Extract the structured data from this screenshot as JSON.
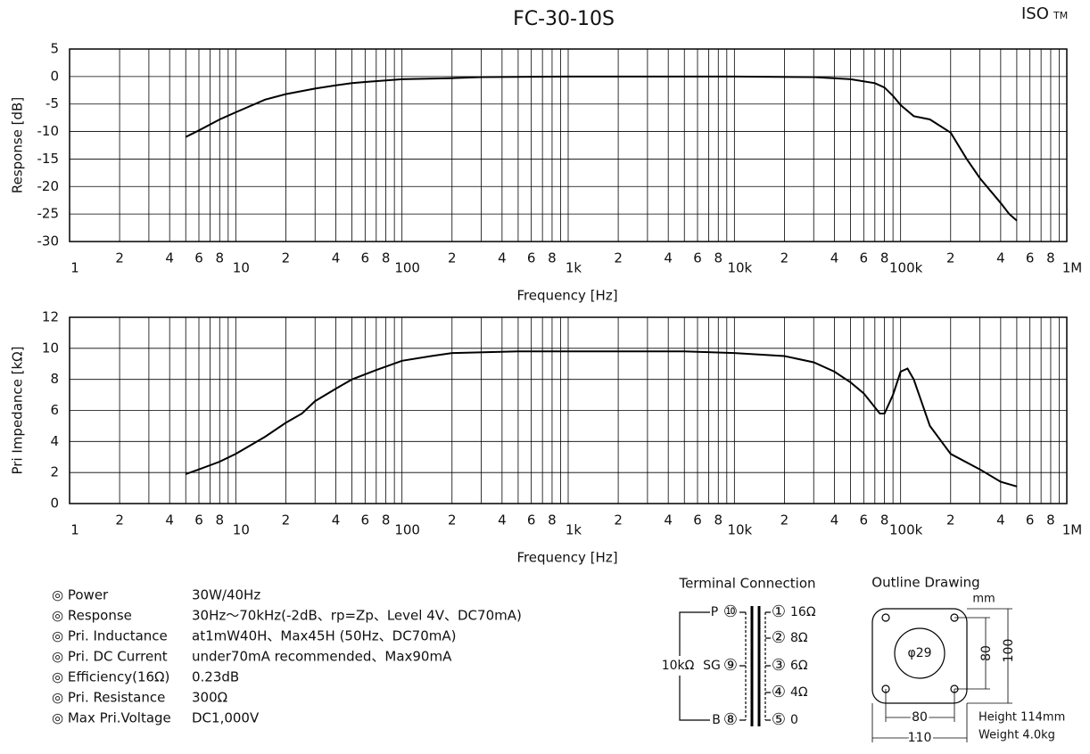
{
  "header": {
    "title": "FC-30-10S",
    "brand": "ISO",
    "trademark": "TM"
  },
  "chart_data": [
    {
      "type": "line",
      "xscale": "log",
      "grid": true,
      "ylabel": "Response [dB]",
      "xlabel": "Frequency [Hz]",
      "color": "#000000",
      "xlim": [
        1,
        1000000
      ],
      "ylim": [
        -30,
        5
      ],
      "yticks": [
        5,
        0,
        -5,
        -10,
        -15,
        -20,
        -25,
        -30
      ],
      "xticks": [
        1,
        2,
        4,
        6,
        8,
        10,
        {
          "value": 20,
          "label": "2"
        },
        {
          "value": 40,
          "label": "4"
        },
        {
          "value": 60,
          "label": "6"
        },
        {
          "value": 80,
          "label": "8"
        },
        100,
        {
          "value": 200,
          "label": "2"
        },
        {
          "value": 400,
          "label": "4"
        },
        {
          "value": 600,
          "label": "6"
        },
        {
          "value": 800,
          "label": "8"
        },
        {
          "value": 1000,
          "label": "1k"
        },
        {
          "value": 2000,
          "label": "2"
        },
        {
          "value": 4000,
          "label": "4"
        },
        {
          "value": 6000,
          "label": "6"
        },
        {
          "value": 8000,
          "label": "8"
        },
        {
          "value": 10000,
          "label": "10k"
        },
        {
          "value": 20000,
          "label": "2"
        },
        {
          "value": 40000,
          "label": "4"
        },
        {
          "value": 60000,
          "label": "6"
        },
        {
          "value": 80000,
          "label": "8"
        },
        {
          "value": 100000,
          "label": "100k"
        },
        {
          "value": 200000,
          "label": "2"
        },
        {
          "value": 400000,
          "label": "4"
        },
        {
          "value": 600000,
          "label": "6"
        },
        {
          "value": 800000,
          "label": "8"
        },
        {
          "value": 1000000,
          "label": "1M"
        }
      ],
      "x_minor_ticks": [
        3,
        5,
        7,
        9,
        30,
        50,
        70,
        90,
        300,
        500,
        700,
        900,
        3000,
        5000,
        7000,
        9000,
        30000,
        50000,
        70000,
        90000,
        300000,
        500000,
        700000,
        900000
      ],
      "x": [
        5,
        6,
        8,
        10,
        15,
        20,
        30,
        40,
        50,
        60,
        80,
        100,
        200,
        300,
        1000,
        10000,
        30000,
        50000,
        70000,
        80000,
        90000,
        100000,
        120000,
        150000,
        200000,
        250000,
        300000,
        400000,
        450000,
        500000
      ],
      "values": [
        -11,
        -9.8,
        -7.8,
        -6.5,
        -4.2,
        -3.2,
        -2.2,
        -1.6,
        -1.2,
        -1.0,
        -0.7,
        -0.5,
        -0.3,
        -0.1,
        0,
        0,
        -0.1,
        -0.5,
        -1.2,
        -2.0,
        -3.5,
        -5.2,
        -7.2,
        -7.8,
        -10.2,
        -15,
        -18.5,
        -23,
        -25,
        -26.2
      ]
    },
    {
      "type": "line",
      "xscale": "log",
      "grid": true,
      "ylabel": "Pri Impedance [kΩ]",
      "xlabel": "Frequency [Hz]",
      "color": "#000000",
      "xlim": [
        1,
        1000000
      ],
      "ylim": [
        0,
        12
      ],
      "yticks": [
        12,
        10,
        8,
        6,
        4,
        2,
        0
      ],
      "xticks": [
        1,
        2,
        4,
        6,
        8,
        10,
        {
          "value": 20,
          "label": "2"
        },
        {
          "value": 40,
          "label": "4"
        },
        {
          "value": 60,
          "label": "6"
        },
        {
          "value": 80,
          "label": "8"
        },
        100,
        {
          "value": 200,
          "label": "2"
        },
        {
          "value": 400,
          "label": "4"
        },
        {
          "value": 600,
          "label": "6"
        },
        {
          "value": 800,
          "label": "8"
        },
        {
          "value": 1000,
          "label": "1k"
        },
        {
          "value": 2000,
          "label": "2"
        },
        {
          "value": 4000,
          "label": "4"
        },
        {
          "value": 6000,
          "label": "6"
        },
        {
          "value": 8000,
          "label": "8"
        },
        {
          "value": 10000,
          "label": "10k"
        },
        {
          "value": 20000,
          "label": "2"
        },
        {
          "value": 40000,
          "label": "4"
        },
        {
          "value": 60000,
          "label": "6"
        },
        {
          "value": 80000,
          "label": "8"
        },
        {
          "value": 100000,
          "label": "100k"
        },
        {
          "value": 200000,
          "label": "2"
        },
        {
          "value": 400000,
          "label": "4"
        },
        {
          "value": 600000,
          "label": "6"
        },
        {
          "value": 800000,
          "label": "8"
        },
        {
          "value": 1000000,
          "label": "1M"
        }
      ],
      "x_minor_ticks": [
        3,
        5,
        7,
        9,
        30,
        50,
        70,
        90,
        300,
        500,
        700,
        900,
        3000,
        5000,
        7000,
        9000,
        30000,
        50000,
        70000,
        90000,
        300000,
        500000,
        700000,
        900000
      ],
      "x": [
        5,
        6,
        8,
        10,
        15,
        20,
        25,
        30,
        40,
        50,
        70,
        100,
        150,
        200,
        500,
        1000,
        5000,
        10000,
        20000,
        30000,
        40000,
        50000,
        60000,
        70000,
        75000,
        80000,
        90000,
        100000,
        110000,
        120000,
        150000,
        200000,
        300000,
        400000,
        500000
      ],
      "values": [
        1.9,
        2.2,
        2.7,
        3.2,
        4.3,
        5.2,
        5.8,
        6.6,
        7.4,
        8.0,
        8.6,
        9.2,
        9.5,
        9.7,
        9.8,
        9.8,
        9.8,
        9.7,
        9.5,
        9.1,
        8.5,
        7.8,
        7.1,
        6.2,
        5.8,
        5.8,
        7.0,
        8.5,
        8.7,
        8.0,
        5.0,
        3.2,
        2.2,
        1.4,
        1.1
      ]
    }
  ],
  "specs": [
    [
      "◎ Power",
      "30W/40Hz"
    ],
    [
      "◎ Response",
      "30Hz～70kHz(-2dB、rp=Zp、Level 4V、DC70mA)"
    ],
    [
      "◎ Pri. Inductance",
      "at1mW40H、Max45H (50Hz、DC70mA)"
    ],
    [
      "◎ Pri. DC Current",
      "under70mA recommended、Max90mA"
    ],
    [
      "◎ Efficiency(16Ω)",
      "0.23dB"
    ],
    [
      "◎ Pri. Resistance",
      "300Ω"
    ],
    [
      "◎ Max Pri.Voltage",
      "DC1,000V"
    ]
  ],
  "terminal": {
    "title": "Terminal Connection",
    "primary_impedance": "10kΩ",
    "primary": [
      {
        "label": "P",
        "pin": "⑩"
      },
      {
        "label": "SG",
        "pin": "⑨"
      },
      {
        "label": "B",
        "pin": "⑧"
      }
    ],
    "secondary": [
      {
        "pin": "①",
        "label": "16Ω"
      },
      {
        "pin": "②",
        "label": "8Ω"
      },
      {
        "pin": "③",
        "label": "6Ω"
      },
      {
        "pin": "④",
        "label": "4Ω"
      },
      {
        "pin": "⑤",
        "label": "0"
      }
    ]
  },
  "outline": {
    "title": "Outline Drawing",
    "unit": "mm",
    "hole": "φ29",
    "mount_height": "80",
    "height": "100",
    "mount_width": "80",
    "width": "110",
    "height_note": "Height 114mm",
    "weight_note": "Weight 4.0kg"
  }
}
